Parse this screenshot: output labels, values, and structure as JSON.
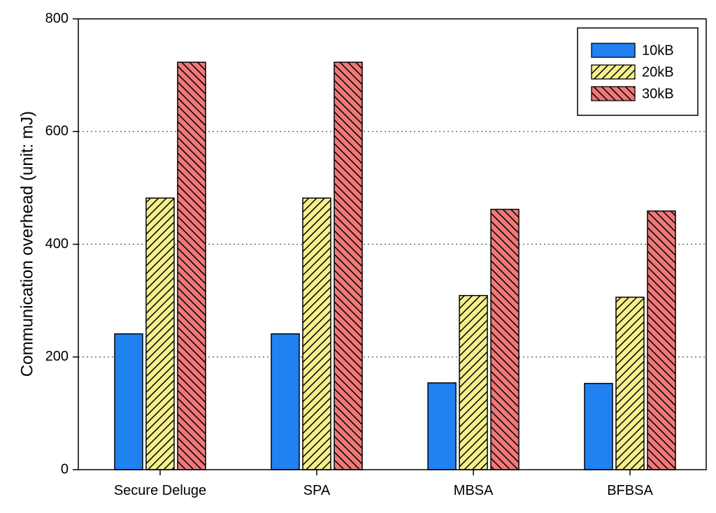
{
  "chart_data": {
    "type": "bar",
    "title": "",
    "xlabel": "",
    "ylabel": "Communication overhead (unit: mJ)",
    "categories": [
      "Secure Deluge",
      "SPA",
      "MBSA",
      "BFBSA"
    ],
    "series": [
      {
        "name": "10kB",
        "values": [
          241,
          241,
          154,
          153
        ],
        "color": "#1f82f0",
        "pattern": "solid"
      },
      {
        "name": "20kB",
        "values": [
          482,
          482,
          309,
          306
        ],
        "color": "#f5f08c",
        "pattern": "hatch-right"
      },
      {
        "name": "30kB",
        "values": [
          723,
          723,
          462,
          459
        ],
        "color": "#f07878",
        "pattern": "hatch-left"
      }
    ],
    "ylim": [
      0,
      800
    ],
    "yticks": [
      0,
      200,
      400,
      600,
      800
    ],
    "grid": "horizontal-dotted",
    "legend_position": "top-right"
  }
}
